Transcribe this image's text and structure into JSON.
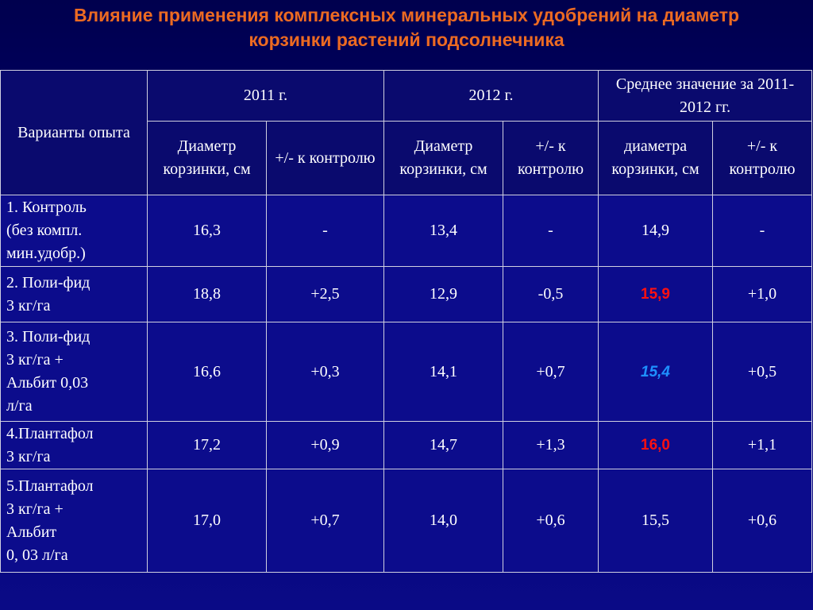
{
  "title": "Влияние применения комплексных минеральных удобрений на диаметр корзинки растений подсолнечника",
  "table": {
    "header": {
      "variant": "Варианты опыта",
      "years": [
        "2011 г.",
        "2012 г.",
        "Среднее значение за 2011-2012 гг."
      ],
      "sub": [
        "Диаметр корзинки, см",
        "+/- к контролю",
        "Диаметр корзинки, см",
        "+/- к контролю",
        "диаметра корзинки, см",
        "+/- к контролю"
      ]
    },
    "rows": [
      [
        "1. Контроль\n(без компл.\nмин.удобр.)",
        "16,3",
        "-",
        "13,4",
        "-",
        "14,9",
        "-"
      ],
      [
        "2. Поли-фид\n3 кг/га",
        "18,8",
        "+2,5",
        "12,9",
        "-0,5",
        "15,9",
        "+1,0"
      ],
      [
        "3. Поли-фид\n3 кг/га +\nАльбит 0,03\nл/га",
        "16,6",
        "+0,3",
        "14,1",
        "+0,7",
        "15,4",
        "+0,5"
      ],
      [
        "4.Плантафол\n 3 кг/га",
        "17,2",
        "+0,9",
        "14,7",
        "+1,3",
        "16,0",
        "+1,1"
      ],
      [
        "5.Плантафол\n3 кг/га +\nАльбит\n0, 03 л/га",
        "17,0",
        "+0,7",
        "14,0",
        "+0,6",
        "15,5",
        "+0,6"
      ]
    ]
  }
}
